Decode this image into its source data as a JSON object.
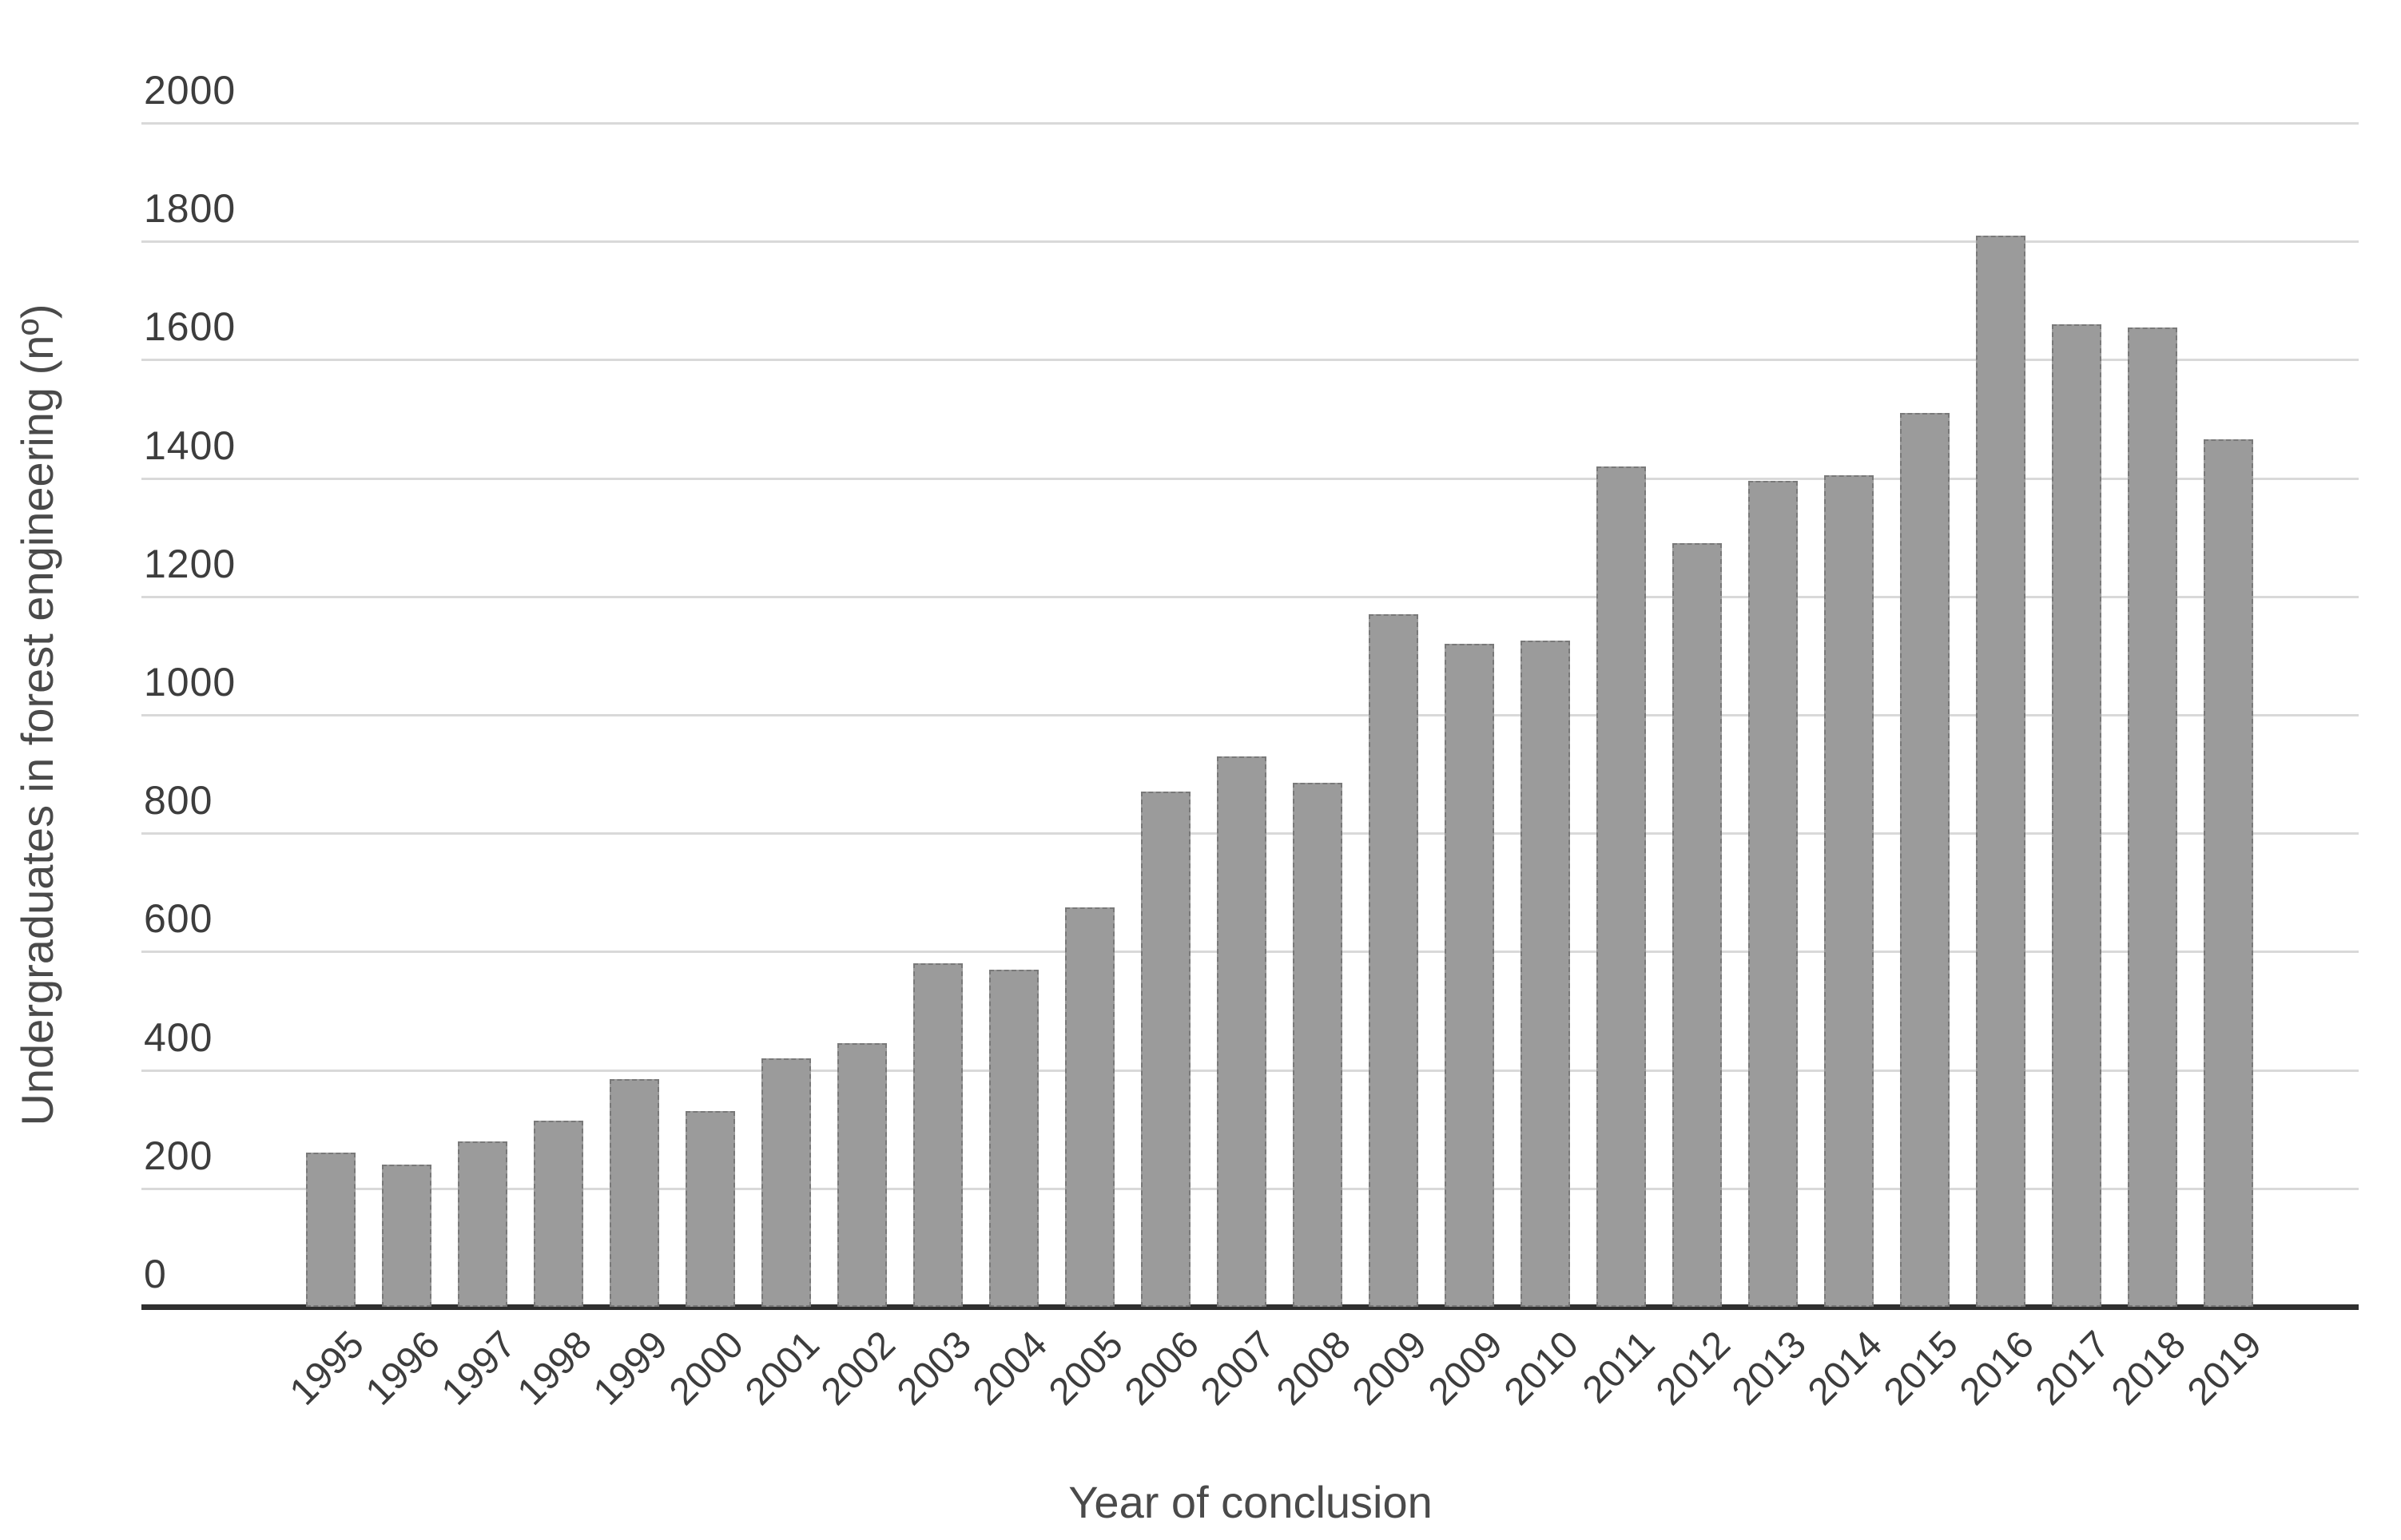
{
  "chart_data": {
    "type": "bar",
    "title": "",
    "xlabel": "Year of conclusion",
    "ylabel": "Undergraduates in forest engineering (nº)",
    "categories": [
      "1995",
      "1996",
      "1997",
      "1998",
      "1999",
      "2000",
      "2001",
      "2002",
      "2003",
      "2004",
      "2005",
      "2006",
      "2007",
      "2008",
      "2009",
      "2009",
      "2010",
      "2011",
      "2012",
      "2013",
      "2014",
      "2015",
      "2016",
      "2017",
      "2018",
      "2019"
    ],
    "values": [
      260,
      240,
      280,
      315,
      385,
      330,
      420,
      445,
      580,
      570,
      675,
      870,
      930,
      885,
      1170,
      1120,
      1125,
      1420,
      1290,
      1395,
      1405,
      1510,
      1810,
      1660,
      1655,
      1465
    ],
    "ylim": [
      0,
      2000
    ],
    "yticks": [
      0,
      200,
      400,
      600,
      800,
      1000,
      1200,
      1400,
      1600,
      1800,
      2000
    ],
    "grid": "horizontal",
    "legend": "none",
    "colors": {
      "bar_fill": "#9b9b9b",
      "bar_border": "#5f5f5f",
      "gridline": "#d9d9d9",
      "axis_line": "#2f2f2f",
      "tick_text": "#3d3d3d",
      "title_text": "#4a4a4a",
      "background": "#ffffff"
    }
  }
}
